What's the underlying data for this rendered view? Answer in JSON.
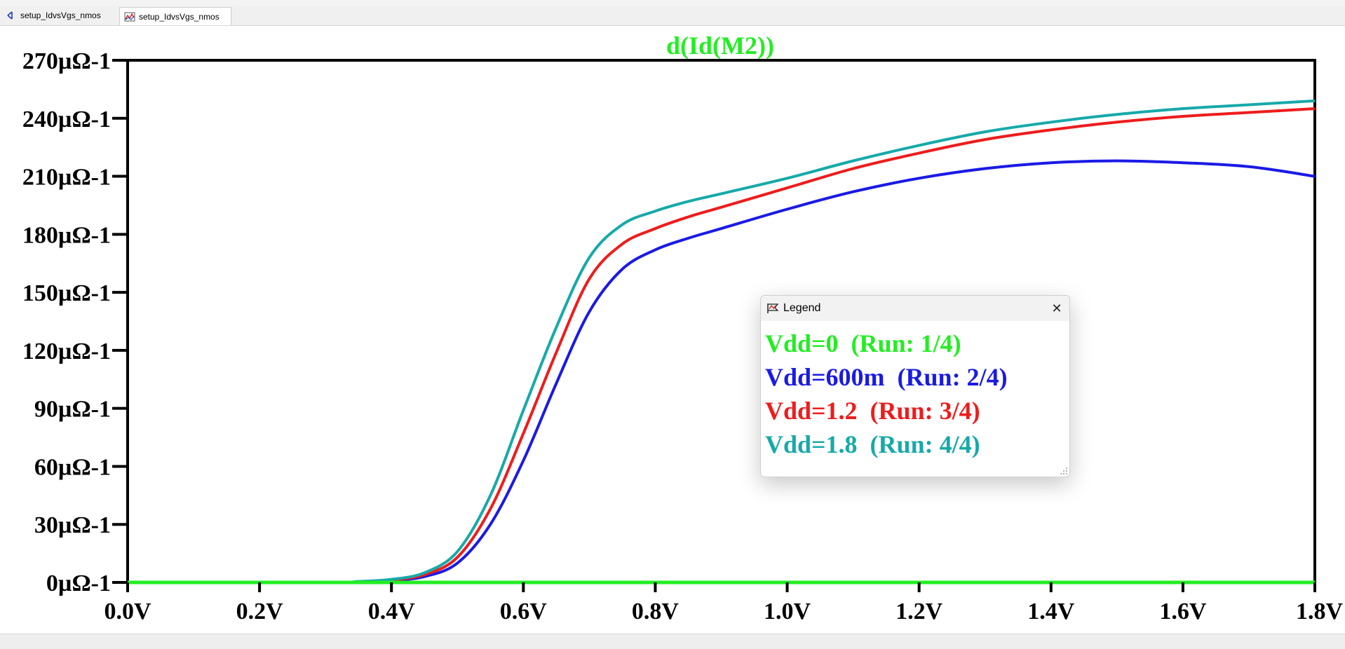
{
  "tabs": [
    {
      "label": "setup_IdvsVgs_nmos",
      "icon": "schematic-icon"
    },
    {
      "label": "setup_IdvsVgs_nmos",
      "icon": "waveform-icon"
    }
  ],
  "legend": {
    "title": "Legend",
    "entries": [
      {
        "label": "Vdd=0  (Run: 1/4)",
        "color": "#22ee22"
      },
      {
        "label": "Vdd=600m  (Run: 2/4)",
        "color": "#1a1ae6"
      },
      {
        "label": "Vdd=1.2  (Run: 3/4)",
        "color": "#ee1c1c"
      },
      {
        "label": "Vdd=1.8  (Run: 4/4)",
        "color": "#17a9a9"
      }
    ]
  },
  "chart_data": {
    "type": "line",
    "title": "d(Id(M2))",
    "title_color": "#22ee22",
    "xlim": [
      0,
      1.8
    ],
    "ylim": [
      0,
      270
    ],
    "x_ticks": [
      0,
      0.2,
      0.4,
      0.6,
      0.8,
      1.0,
      1.2,
      1.4,
      1.6,
      1.8
    ],
    "x_tick_labels": [
      "0.0V",
      "0.2V",
      "0.4V",
      "0.6V",
      "0.8V",
      "1.0V",
      "1.2V",
      "1.4V",
      "1.6V",
      "1.8V"
    ],
    "y_ticks": [
      0,
      30,
      60,
      90,
      120,
      150,
      180,
      210,
      240,
      270
    ],
    "y_tick_labels": [
      "0µΩ-1",
      "30µΩ-1",
      "60µΩ-1",
      "90µΩ-1",
      "120µΩ-1",
      "150µΩ-1",
      "180µΩ-1",
      "210µΩ-1",
      "240µΩ-1",
      "270µΩ-1"
    ],
    "grid": false,
    "legend_position": "center-right",
    "series": [
      {
        "name": "Vdd=0  (Run: 1/4)",
        "color": "#22ee22",
        "x": [
          0,
          0.2,
          0.4,
          0.6,
          0.8,
          1.0,
          1.2,
          1.4,
          1.6,
          1.8
        ],
        "y": [
          0,
          0,
          0,
          0,
          0,
          0,
          0,
          0,
          0,
          0
        ]
      },
      {
        "name": "Vdd=600m  (Run: 2/4)",
        "color": "#1a1ae6",
        "x": [
          0,
          0.3,
          0.35,
          0.4,
          0.45,
          0.5,
          0.55,
          0.6,
          0.65,
          0.7,
          0.75,
          0.8,
          0.85,
          0.9,
          1.0,
          1.1,
          1.2,
          1.3,
          1.4,
          1.5,
          1.6,
          1.7,
          1.8
        ],
        "y": [
          0,
          0,
          0.3,
          1,
          3,
          10,
          30,
          63,
          103,
          140,
          162,
          172,
          178,
          183,
          193,
          202,
          209,
          214,
          217,
          218,
          217,
          215,
          210
        ]
      },
      {
        "name": "Vdd=1.2  (Run: 3/4)",
        "color": "#ee1c1c",
        "x": [
          0,
          0.3,
          0.35,
          0.4,
          0.45,
          0.5,
          0.55,
          0.6,
          0.65,
          0.7,
          0.75,
          0.8,
          0.85,
          0.9,
          1.0,
          1.1,
          1.2,
          1.3,
          1.4,
          1.5,
          1.6,
          1.7,
          1.8
        ],
        "y": [
          0,
          0,
          0.4,
          1.3,
          4,
          13,
          38,
          77,
          119,
          157,
          175,
          183,
          189,
          194,
          204,
          214,
          222,
          229,
          234,
          238,
          241,
          243,
          245
        ]
      },
      {
        "name": "Vdd=1.8  (Run: 4/4)",
        "color": "#17a9a9",
        "x": [
          0,
          0.3,
          0.35,
          0.4,
          0.45,
          0.5,
          0.55,
          0.6,
          0.65,
          0.7,
          0.75,
          0.8,
          0.85,
          0.9,
          1.0,
          1.1,
          1.2,
          1.3,
          1.4,
          1.5,
          1.6,
          1.7,
          1.8
        ],
        "y": [
          0,
          0,
          0.5,
          1.6,
          5,
          16,
          45,
          89,
          132,
          168,
          185,
          192,
          197,
          201,
          209,
          218,
          226,
          233,
          238,
          242,
          245,
          247,
          249
        ]
      }
    ]
  }
}
